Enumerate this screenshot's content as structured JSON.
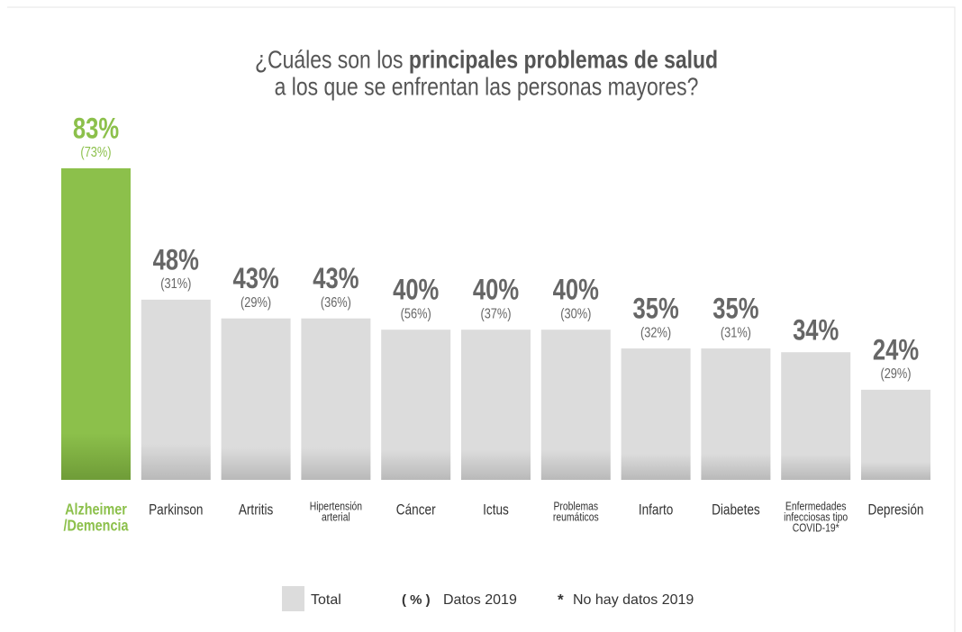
{
  "chart_data": {
    "type": "bar",
    "title": {
      "line1_regular": "¿Cuáles son los",
      "line1_bold": "principales problemas de salud",
      "line2": "a los que se enfrentan las personas mayores?"
    },
    "categories": [
      [
        "Alzheimer",
        "/Demencia"
      ],
      [
        "Parkinson"
      ],
      [
        "Artritis"
      ],
      [
        "Hipertensión",
        "arterial"
      ],
      [
        "Cáncer"
      ],
      [
        "Ictus"
      ],
      [
        "Problemas",
        "reumáticos"
      ],
      [
        "Infarto"
      ],
      [
        "Diabetes"
      ],
      [
        "Enfermedades",
        "infecciosas tipo",
        "COVID-19*"
      ],
      [
        "Depresión"
      ]
    ],
    "values": [
      83,
      48,
      43,
      43,
      40,
      40,
      40,
      35,
      35,
      34,
      24
    ],
    "value_labels": [
      "83%",
      "48%",
      "43%",
      "43%",
      "40%",
      "40%",
      "40%",
      "35%",
      "35%",
      "34%",
      "24%"
    ],
    "values_2019": [
      73,
      31,
      29,
      36,
      56,
      37,
      30,
      32,
      31,
      null,
      29
    ],
    "values_2019_labels": [
      "(73%)",
      "(31%)",
      "(29%)",
      "(36%)",
      "(56%)",
      "(37%)",
      "(30%)",
      "(32%)",
      "(31%)",
      null,
      "(29%)"
    ],
    "color": "#dcdcdc",
    "highlight_index": 0,
    "highlight_color": "#8cc04b",
    "ylim": [
      0,
      100
    ],
    "legend": {
      "total": "Total",
      "pct_symbol": "( % )",
      "pct_text": "Datos 2019",
      "star_symbol": "*",
      "star_text": "No hay datos 2019"
    }
  }
}
